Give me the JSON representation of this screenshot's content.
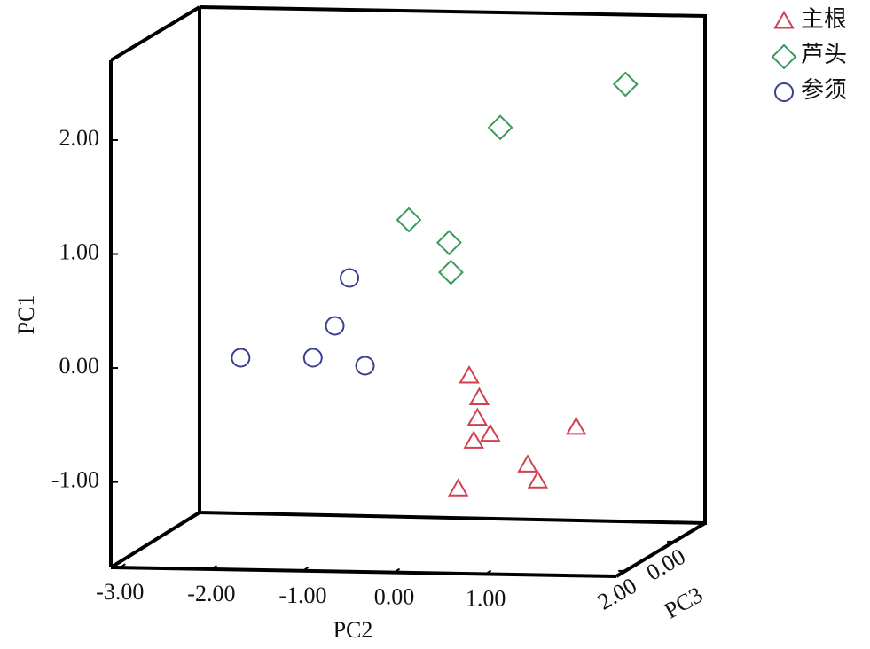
{
  "chart_data": {
    "type": "scatter3d",
    "xlabel": "PC2",
    "ylabel": "PC1",
    "zlabel": "PC3",
    "xlim": [
      -3.1,
      2.43
    ],
    "ylim": [
      -1.75,
      2.7
    ],
    "zlim": [
      -1.27,
      2.37
    ],
    "xticks": [
      {
        "value": -3,
        "label": "-3.00"
      },
      {
        "value": -2,
        "label": "-2.00"
      },
      {
        "value": -1,
        "label": "-1.00"
      },
      {
        "value": 0,
        "label": "0.00"
      },
      {
        "value": 1,
        "label": "1.00"
      }
    ],
    "yticks": [
      {
        "value": -1,
        "label": "-1.00"
      },
      {
        "value": 0,
        "label": "0.00"
      },
      {
        "value": 1,
        "label": "1.00"
      },
      {
        "value": 2,
        "label": "2.00"
      }
    ],
    "zticks": [
      {
        "value": 2,
        "label": "2.00"
      },
      {
        "value": 0,
        "label": "0.00"
      }
    ],
    "legend": "top-right",
    "series": [
      {
        "name": "主根",
        "marker": "triangle",
        "color": "#d0404f",
        "x": [
          0.82,
          0.93,
          0.91,
          1.05,
          0.87,
          1.99,
          1.46,
          1.57,
          0.7
        ],
        "values": [
          -0.07,
          -0.26,
          -0.44,
          -0.58,
          -0.64,
          -0.52,
          -0.85,
          -0.99,
          -1.06
        ]
      },
      {
        "name": "芦头",
        "marker": "diamond",
        "color": "#3a9a5a",
        "x": [
          2.53,
          1.16,
          0.16,
          0.6,
          0.62
        ],
        "values": [
          2.49,
          2.11,
          1.3,
          1.1,
          0.84
        ]
      },
      {
        "name": "参须",
        "marker": "circle",
        "color": "#3a3f8f",
        "x": [
          -1.68,
          -0.89,
          -0.65,
          -0.49,
          -0.32
        ],
        "values": [
          0.09,
          0.09,
          0.37,
          0.79,
          0.02
        ]
      }
    ]
  }
}
